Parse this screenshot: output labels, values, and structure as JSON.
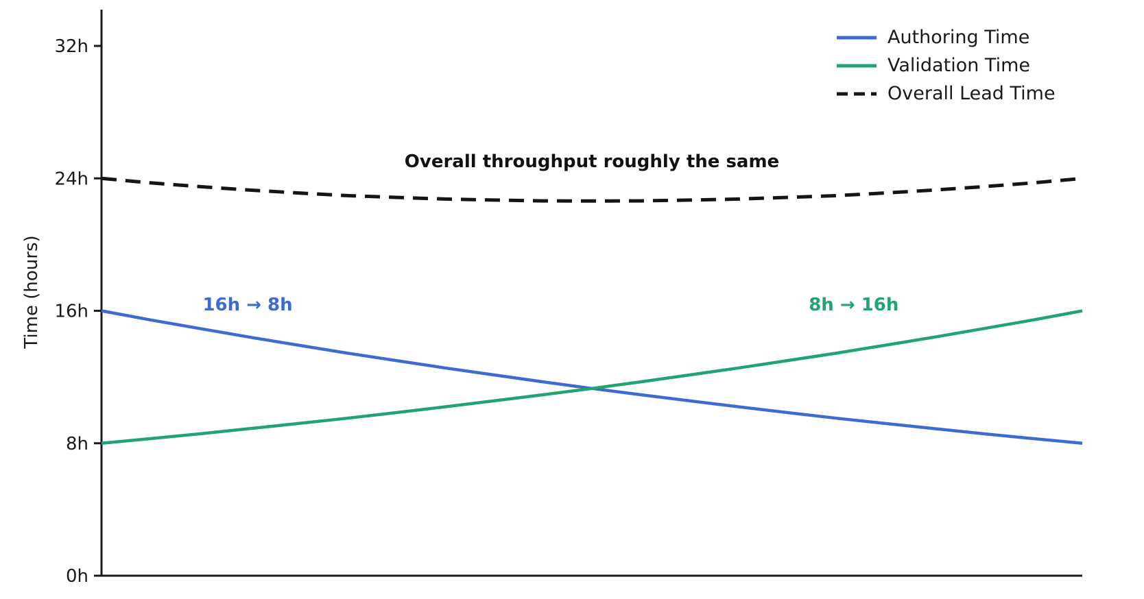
{
  "figure": {
    "background_color": "#ffffff",
    "axis_color": "#1a1a1a"
  },
  "chart_data": {
    "type": "line",
    "title": "",
    "xlabel": "",
    "ylabel": "Time (hours)",
    "ylim": [
      0,
      32
    ],
    "grid": false,
    "legend_position": "upper right",
    "x_axis_tick_labels": "none",
    "yticks": {
      "values": [
        0,
        8,
        16,
        24,
        32
      ],
      "labels": [
        "0h",
        "8h",
        "16h",
        "24h",
        "32h"
      ]
    },
    "x": [
      0,
      0.05,
      0.1,
      0.15,
      0.2,
      0.25,
      0.3,
      0.35,
      0.4,
      0.45,
      0.5,
      0.55,
      0.6,
      0.65,
      0.7,
      0.75,
      0.8,
      0.85,
      0.9,
      0.95,
      1
    ],
    "series": [
      {
        "name": "Authoring Time",
        "color": "#3e6bd2",
        "style": "solid",
        "start_value_hours": 16,
        "end_value_hours": 8,
        "values": [
          16,
          15.45,
          14.93,
          14.42,
          13.93,
          13.45,
          13.0,
          12.55,
          12.13,
          11.71,
          11.31,
          10.93,
          10.56,
          10.2,
          9.85,
          9.51,
          9.19,
          8.88,
          8.57,
          8.28,
          8
        ]
      },
      {
        "name": "Validation Time",
        "color": "#20a471",
        "style": "solid",
        "start_value_hours": 8,
        "end_value_hours": 16,
        "values": [
          8,
          8.28,
          8.57,
          8.88,
          9.19,
          9.51,
          9.85,
          10.2,
          10.56,
          10.93,
          11.31,
          11.71,
          12.13,
          12.55,
          13.0,
          13.45,
          13.93,
          14.42,
          14.93,
          15.45,
          16
        ]
      },
      {
        "name": "Overall Lead Time",
        "color": "#151515",
        "style": "dashed",
        "start_value_hours": 24,
        "end_value_hours": 24,
        "values": [
          24,
          23.73,
          23.5,
          23.3,
          23.12,
          22.96,
          22.85,
          22.75,
          22.69,
          22.64,
          22.63,
          22.64,
          22.69,
          22.75,
          22.85,
          22.96,
          23.12,
          23.3,
          23.5,
          23.73,
          24
        ]
      }
    ],
    "annotations": [
      {
        "text": "Overall throughput roughly the same",
        "color": "#111111",
        "x": 0.5,
        "y": 25.0
      },
      {
        "text": "16h → 8h",
        "color": "#3e6bd2",
        "x": 0.149,
        "y": 16.35
      },
      {
        "text": "8h → 16h",
        "color": "#20a471",
        "x": 0.767,
        "y": 16.35
      }
    ]
  }
}
